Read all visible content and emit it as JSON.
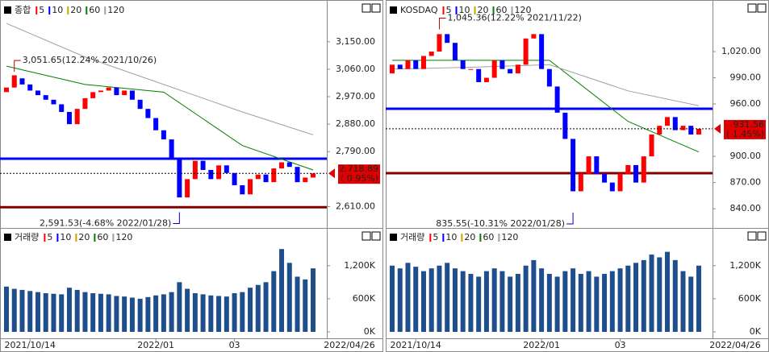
{
  "chart_data": [
    {
      "type": "candlestick",
      "title": "종합",
      "ma_legend": [
        {
          "name": "5",
          "color": "#ff0000"
        },
        {
          "name": "10",
          "color": "#0000ff"
        },
        {
          "name": "20",
          "color": "#d4a000"
        },
        {
          "name": "60",
          "color": "#008000"
        },
        {
          "name": "120",
          "color": "#a0a0a0"
        }
      ],
      "categories": [
        null,
        null,
        null,
        "2021/10/14",
        null,
        null,
        null,
        null,
        null,
        null,
        null,
        null,
        null,
        null,
        null,
        null,
        null,
        null,
        null,
        "2022/01",
        null,
        null,
        null,
        null,
        null,
        null,
        null,
        null,
        null,
        "03",
        null,
        null,
        null,
        null,
        null,
        null,
        null,
        null,
        null,
        null
      ],
      "end_date": "2022/04/26",
      "open": [
        2985,
        3000,
        3030,
        3010,
        2990,
        2975,
        2960,
        2945,
        2920,
        2880,
        2930,
        2965,
        2985,
        2990,
        3000,
        2975,
        2990,
        2960,
        2930,
        2900,
        2860,
        2830,
        2770,
        2640,
        2700,
        2760,
        2730,
        2700,
        2745,
        2720,
        2680,
        2650,
        2700,
        2715,
        2690,
        2735,
        2755,
        2740,
        2690,
        2705
      ],
      "close": [
        3000,
        3040,
        3010,
        2990,
        2975,
        2960,
        2945,
        2920,
        2880,
        2930,
        2965,
        2985,
        2990,
        3000,
        2975,
        2990,
        2960,
        2930,
        2900,
        2860,
        2830,
        2770,
        2640,
        2700,
        2760,
        2730,
        2700,
        2745,
        2720,
        2680,
        2650,
        2700,
        2715,
        2690,
        2735,
        2755,
        2740,
        2690,
        2705,
        2718.89
      ],
      "ma_lines": [
        {
          "name": "60",
          "color": "#008000",
          "x": [
            0,
            10,
            20,
            30,
            39
          ],
          "values": [
            3070,
            3010,
            2985,
            2810,
            2730
          ]
        },
        {
          "name": "120",
          "color": "#a0a0a0",
          "x": [
            0,
            10,
            20,
            30,
            39
          ],
          "values": [
            3210,
            3100,
            3010,
            2920,
            2845
          ]
        }
      ],
      "ylim": [
        2540,
        3255
      ],
      "yticks": [
        {
          "value": 2610,
          "label": "2,610.00"
        },
        {
          "value": 2790,
          "label": "2,790.00"
        },
        {
          "value": 2880,
          "label": "2,880.00"
        },
        {
          "value": 2970,
          "label": "2,970.00"
        },
        {
          "value": 3060,
          "label": "3,060.00"
        },
        {
          "value": 3150,
          "label": "3,150.00"
        }
      ],
      "hlines": [
        {
          "value": 2767,
          "color": "#0000ff"
        },
        {
          "value": 2608,
          "color": "#800000"
        }
      ],
      "last": {
        "value": 2718.89,
        "label": "2,718.89",
        "change": "( 0.95%)"
      },
      "annotations": [
        {
          "text": "3,051.65(12.24% 2021/10/26)",
          "value": 3051.65,
          "index": 1,
          "position": "above"
        },
        {
          "text": "2,591.53(-4.68% 2022/01/28)",
          "value": 2591.53,
          "index": 22,
          "position": "below"
        }
      ],
      "volume": {
        "title": "거래량",
        "color": "#1f4e8c",
        "values": [
          820,
          780,
          760,
          740,
          720,
          700,
          690,
          680,
          800,
          760,
          720,
          700,
          690,
          680,
          650,
          640,
          620,
          600,
          630,
          660,
          680,
          720,
          900,
          780,
          700,
          680,
          660,
          650,
          640,
          700,
          720,
          800,
          850,
          900,
          1100,
          1500,
          1250,
          1000,
          950,
          1150
        ],
        "ylim": [
          0,
          1780
        ],
        "yticks": [
          {
            "value": 0,
            "label": "0K"
          },
          {
            "value": 600,
            "label": "600K"
          },
          {
            "value": 1200,
            "label": "1,200K"
          }
        ]
      }
    },
    {
      "type": "candlestick",
      "title": "KOSDAQ",
      "ma_legend": [
        {
          "name": "5",
          "color": "#ff0000"
        },
        {
          "name": "10",
          "color": "#0000ff"
        },
        {
          "name": "20",
          "color": "#d4a000"
        },
        {
          "name": "60",
          "color": "#008000"
        },
        {
          "name": "120",
          "color": "#a0a0a0"
        }
      ],
      "categories": [
        null,
        null,
        null,
        "2021/10/14",
        null,
        null,
        null,
        null,
        null,
        null,
        null,
        null,
        null,
        null,
        null,
        null,
        null,
        null,
        null,
        "2022/01",
        null,
        null,
        null,
        null,
        null,
        null,
        null,
        null,
        null,
        "03",
        null,
        null,
        null,
        null,
        null,
        null,
        null,
        null,
        null,
        null
      ],
      "end_date": "2022/04/26",
      "open": [
        995,
        1005,
        1000,
        1010,
        1000,
        1015,
        1020,
        1040,
        1030,
        1010,
        1000,
        1000,
        985,
        990,
        1010,
        1000,
        995,
        1005,
        1035,
        1040,
        1000,
        980,
        950,
        920,
        860,
        880,
        900,
        880,
        870,
        860,
        880,
        890,
        870,
        900,
        925,
        935,
        945,
        930,
        935,
        925
      ],
      "close": [
        1005,
        1000,
        1010,
        1000,
        1015,
        1020,
        1040,
        1030,
        1010,
        1000,
        1000,
        985,
        990,
        1010,
        1000,
        995,
        1005,
        1035,
        1040,
        1000,
        980,
        950,
        920,
        860,
        880,
        900,
        880,
        870,
        860,
        880,
        890,
        870,
        900,
        925,
        935,
        945,
        930,
        935,
        925,
        931.56
      ],
      "ma_lines": [
        {
          "name": "60",
          "color": "#008000",
          "x": [
            0,
            10,
            20,
            30,
            39
          ],
          "values": [
            1010,
            1010,
            1010,
            940,
            905
          ]
        },
        {
          "name": "120",
          "color": "#a0a0a0",
          "x": [
            0,
            10,
            20,
            30,
            39
          ],
          "values": [
            1000,
            1002,
            1005,
            975,
            958
          ]
        }
      ],
      "ylim": [
        818,
        1068
      ],
      "yticks": [
        {
          "value": 840,
          "label": "840.00"
        },
        {
          "value": 870,
          "label": "870.00"
        },
        {
          "value": 900,
          "label": "900.00"
        },
        {
          "value": 960,
          "label": "960.00"
        },
        {
          "value": 990,
          "label": "990.00"
        },
        {
          "value": 1020,
          "label": "1,020.00"
        }
      ],
      "hlines": [
        {
          "value": 954.5,
          "color": "#0000ff"
        },
        {
          "value": 880.7,
          "color": "#800000"
        }
      ],
      "last": {
        "value": 931.56,
        "label": "931.56",
        "change": "( 1.45%)"
      },
      "annotations": [
        {
          "text": "1,045.36(12.22% 2021/11/22)",
          "value": 1045.36,
          "index": 6,
          "position": "above"
        },
        {
          "text": "835.55(-10.31% 2022/01/28)",
          "value": 835.55,
          "index": 23,
          "position": "below"
        }
      ],
      "volume": {
        "title": "거래량",
        "color": "#1f4e8c",
        "values": [
          1200,
          1150,
          1250,
          1180,
          1100,
          1150,
          1200,
          1250,
          1150,
          1100,
          1050,
          1000,
          1100,
          1150,
          1100,
          1000,
          1050,
          1200,
          1300,
          1150,
          1050,
          1000,
          1100,
          1150,
          1050,
          1100,
          1000,
          1050,
          1100,
          1150,
          1200,
          1250,
          1300,
          1400,
          1350,
          1450,
          1300,
          1100,
          1000,
          1200
        ],
        "ylim": [
          0,
          1780
        ],
        "yticks": [
          {
            "value": 0,
            "label": "0K"
          },
          {
            "value": 600,
            "label": "600K"
          },
          {
            "value": 1200,
            "label": "1,200K"
          }
        ]
      }
    }
  ]
}
